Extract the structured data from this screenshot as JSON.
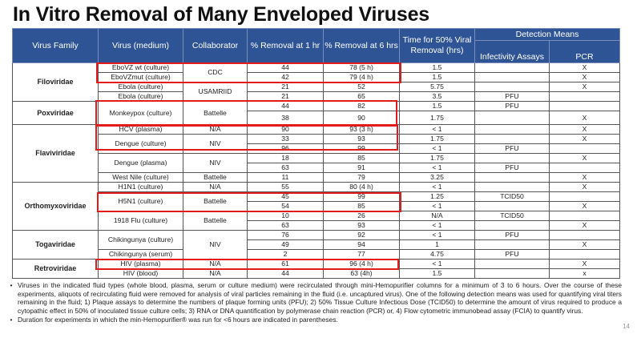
{
  "title": "In Vitro Removal of Many Enveloped Viruses",
  "headers": {
    "family": "Virus Family",
    "virus": "Virus (medium)",
    "collaborator": "Collaborator",
    "removal_1hr": "% Removal at 1 hr",
    "removal_6hr": "% Removal at 6 hrs",
    "time50": "Time for 50% Viral Removal (hrs)",
    "detection": "Detection Means",
    "infectivity": "Infectivity Assays",
    "pcr": "PCR"
  },
  "families": [
    "Filoviridae",
    "Poxviridae",
    "Flaviviridae",
    "Orthomyxoviridae",
    "Togaviridae",
    "Retroviridae"
  ],
  "viruses": [
    "EboVZ wt (culture)",
    "EboVZmut (culture)",
    "Ebola (culture)",
    "Ebola (culture)",
    "Monkeypox (culture)",
    "HCV (plasma)",
    "Dengue (culture)",
    "Dengue (plasma)",
    "West Nile (culture)",
    "H1N1 (culture)",
    "H5N1 (culture)",
    "1918 Flu (culture)",
    "Chikingunya (culture)",
    "Chikingunya (serum)",
    "HIV (plasma)",
    "HIV (blood)"
  ],
  "collaborators": [
    "CDC",
    "USAMRIID",
    "Battelle",
    "N/A",
    "NIV",
    "NIV",
    "Battelle",
    "N/A",
    "Battelle",
    "Battelle",
    "NIV",
    "N/A",
    "N/A"
  ],
  "rows": [
    {
      "h1": "44",
      "h6": "78 (5 h)",
      "t50": "1.5",
      "inf": "",
      "pcr": "X"
    },
    {
      "h1": "42",
      "h6": "79 (4 h)",
      "t50": "1.5",
      "inf": "",
      "pcr": "X"
    },
    {
      "h1": "21",
      "h6": "52",
      "t50": "5.75",
      "inf": "",
      "pcr": "X"
    },
    {
      "h1": "21",
      "h6": "65",
      "t50": "3.5",
      "inf": "PFU",
      "pcr": ""
    },
    {
      "h1": "44",
      "h6": "82",
      "t50": "1.5",
      "inf": "PFU",
      "pcr": ""
    },
    {
      "h1": "38",
      "h6": "90",
      "t50": "1.75",
      "inf": "",
      "pcr": "X"
    },
    {
      "h1": "90",
      "h6": "93 (3 h)",
      "t50": "< 1",
      "inf": "",
      "pcr": "X"
    },
    {
      "h1": "33",
      "h6": "93",
      "t50": "1.75",
      "inf": "",
      "pcr": "X"
    },
    {
      "h1": "96",
      "h6": "99",
      "t50": "< 1",
      "inf": "PFU",
      "pcr": ""
    },
    {
      "h1": "18",
      "h6": "85",
      "t50": "1.75",
      "inf": "",
      "pcr": "X"
    },
    {
      "h1": "63",
      "h6": "91",
      "t50": "< 1",
      "inf": "PFU",
      "pcr": ""
    },
    {
      "h1": "11",
      "h6": "79",
      "t50": "3.25",
      "inf": "",
      "pcr": "X"
    },
    {
      "h1": "55",
      "h6": "80 (4 h)",
      "t50": "< 1",
      "inf": "",
      "pcr": "X"
    },
    {
      "h1": "45",
      "h6": "99",
      "t50": "1.25",
      "inf": "TCID50",
      "pcr": ""
    },
    {
      "h1": "54",
      "h6": "85",
      "t50": "< 1",
      "inf": "",
      "pcr": "X"
    },
    {
      "h1": "10",
      "h6": "26",
      "t50": "N/A",
      "inf": "TCID50",
      "pcr": ""
    },
    {
      "h1": "63",
      "h6": "93",
      "t50": "< 1",
      "inf": "",
      "pcr": "X"
    },
    {
      "h1": "76",
      "h6": "92",
      "t50": "< 1",
      "inf": "PFU",
      "pcr": ""
    },
    {
      "h1": "49",
      "h6": "94",
      "t50": "1",
      "inf": "",
      "pcr": "X"
    },
    {
      "h1": "2",
      "h6": "77",
      "t50": "4.75",
      "inf": "PFU",
      "pcr": ""
    },
    {
      "h1": "61",
      "h6": "96 (4 h)",
      "t50": "< 1",
      "inf": "",
      "pcr": "X"
    },
    {
      "h1": "44",
      "h6": "63 (4h)",
      "t50": "1.5",
      "inf": "",
      "pcr": "x"
    }
  ],
  "notes": [
    "Viruses in the indicated fluid types (whole blood, plasma, serum or culture medium) were recirculated through mini-Hemopurifier columns for a minimum of 3 to 6 hours.  Over the course of these experiments, aliquots of recirculating fluid were removed for analysis of viral particles remaining in the fluid (i.e. uncaptured virus). One of the following detection means was used for quantifying viral titers remaining in the fluid; 1) Plaque assays to determine the numbers of plaque forming units (PFU); 2) 50% Tissue Culture Infectious Dose (TCID50) to determine the amount of virus required to produce a cytopathic effect in 50% of inoculated tissue culture cells; 3) RNA or DNA quantification by polymerase chain reaction (PCR) or, 4) Flow cytometric immunobead assay (FCIA) to quantify virus.",
    "Duration for experiments in which the min-Hemopurifier® was run for <6 hours are indicated in parentheses."
  ],
  "page_number": "14",
  "colors": {
    "header_bg": "#2F5496",
    "highlight": "#E41B1B"
  }
}
